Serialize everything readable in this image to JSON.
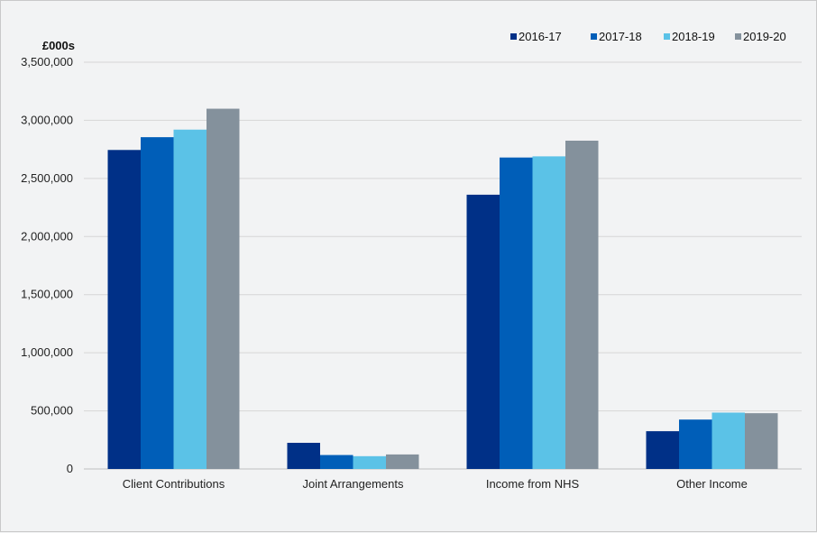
{
  "chart_data": {
    "type": "bar",
    "title": "",
    "ylabel": "£000s",
    "xlabel": "",
    "categories": [
      "Client Contributions",
      "Joint Arrangements",
      "Income from NHS",
      "Other Income"
    ],
    "series": [
      {
        "name": "2016-17",
        "color": "#003087",
        "values": [
          2745000,
          225000,
          2360000,
          325000
        ]
      },
      {
        "name": "2017-18",
        "color": "#005eb8",
        "values": [
          2855000,
          120000,
          2680000,
          425000
        ]
      },
      {
        "name": "2018-19",
        "color": "#5bc2e7",
        "values": [
          2920000,
          110000,
          2690000,
          485000
        ]
      },
      {
        "name": "2019-20",
        "color": "#84919c",
        "values": [
          3100000,
          125000,
          2825000,
          480000
        ]
      }
    ],
    "ylim": [
      0,
      3500000
    ],
    "yticks": [
      "0",
      "500,000",
      "1,000,000",
      "1,500,000",
      "2,000,000",
      "2,500,000",
      "3,000,000",
      "3,500,000"
    ],
    "ytick_values": [
      0,
      500000,
      1000000,
      1500000,
      2000000,
      2500000,
      3000000,
      3500000
    ],
    "grid": true,
    "legend_position": "top-right"
  }
}
